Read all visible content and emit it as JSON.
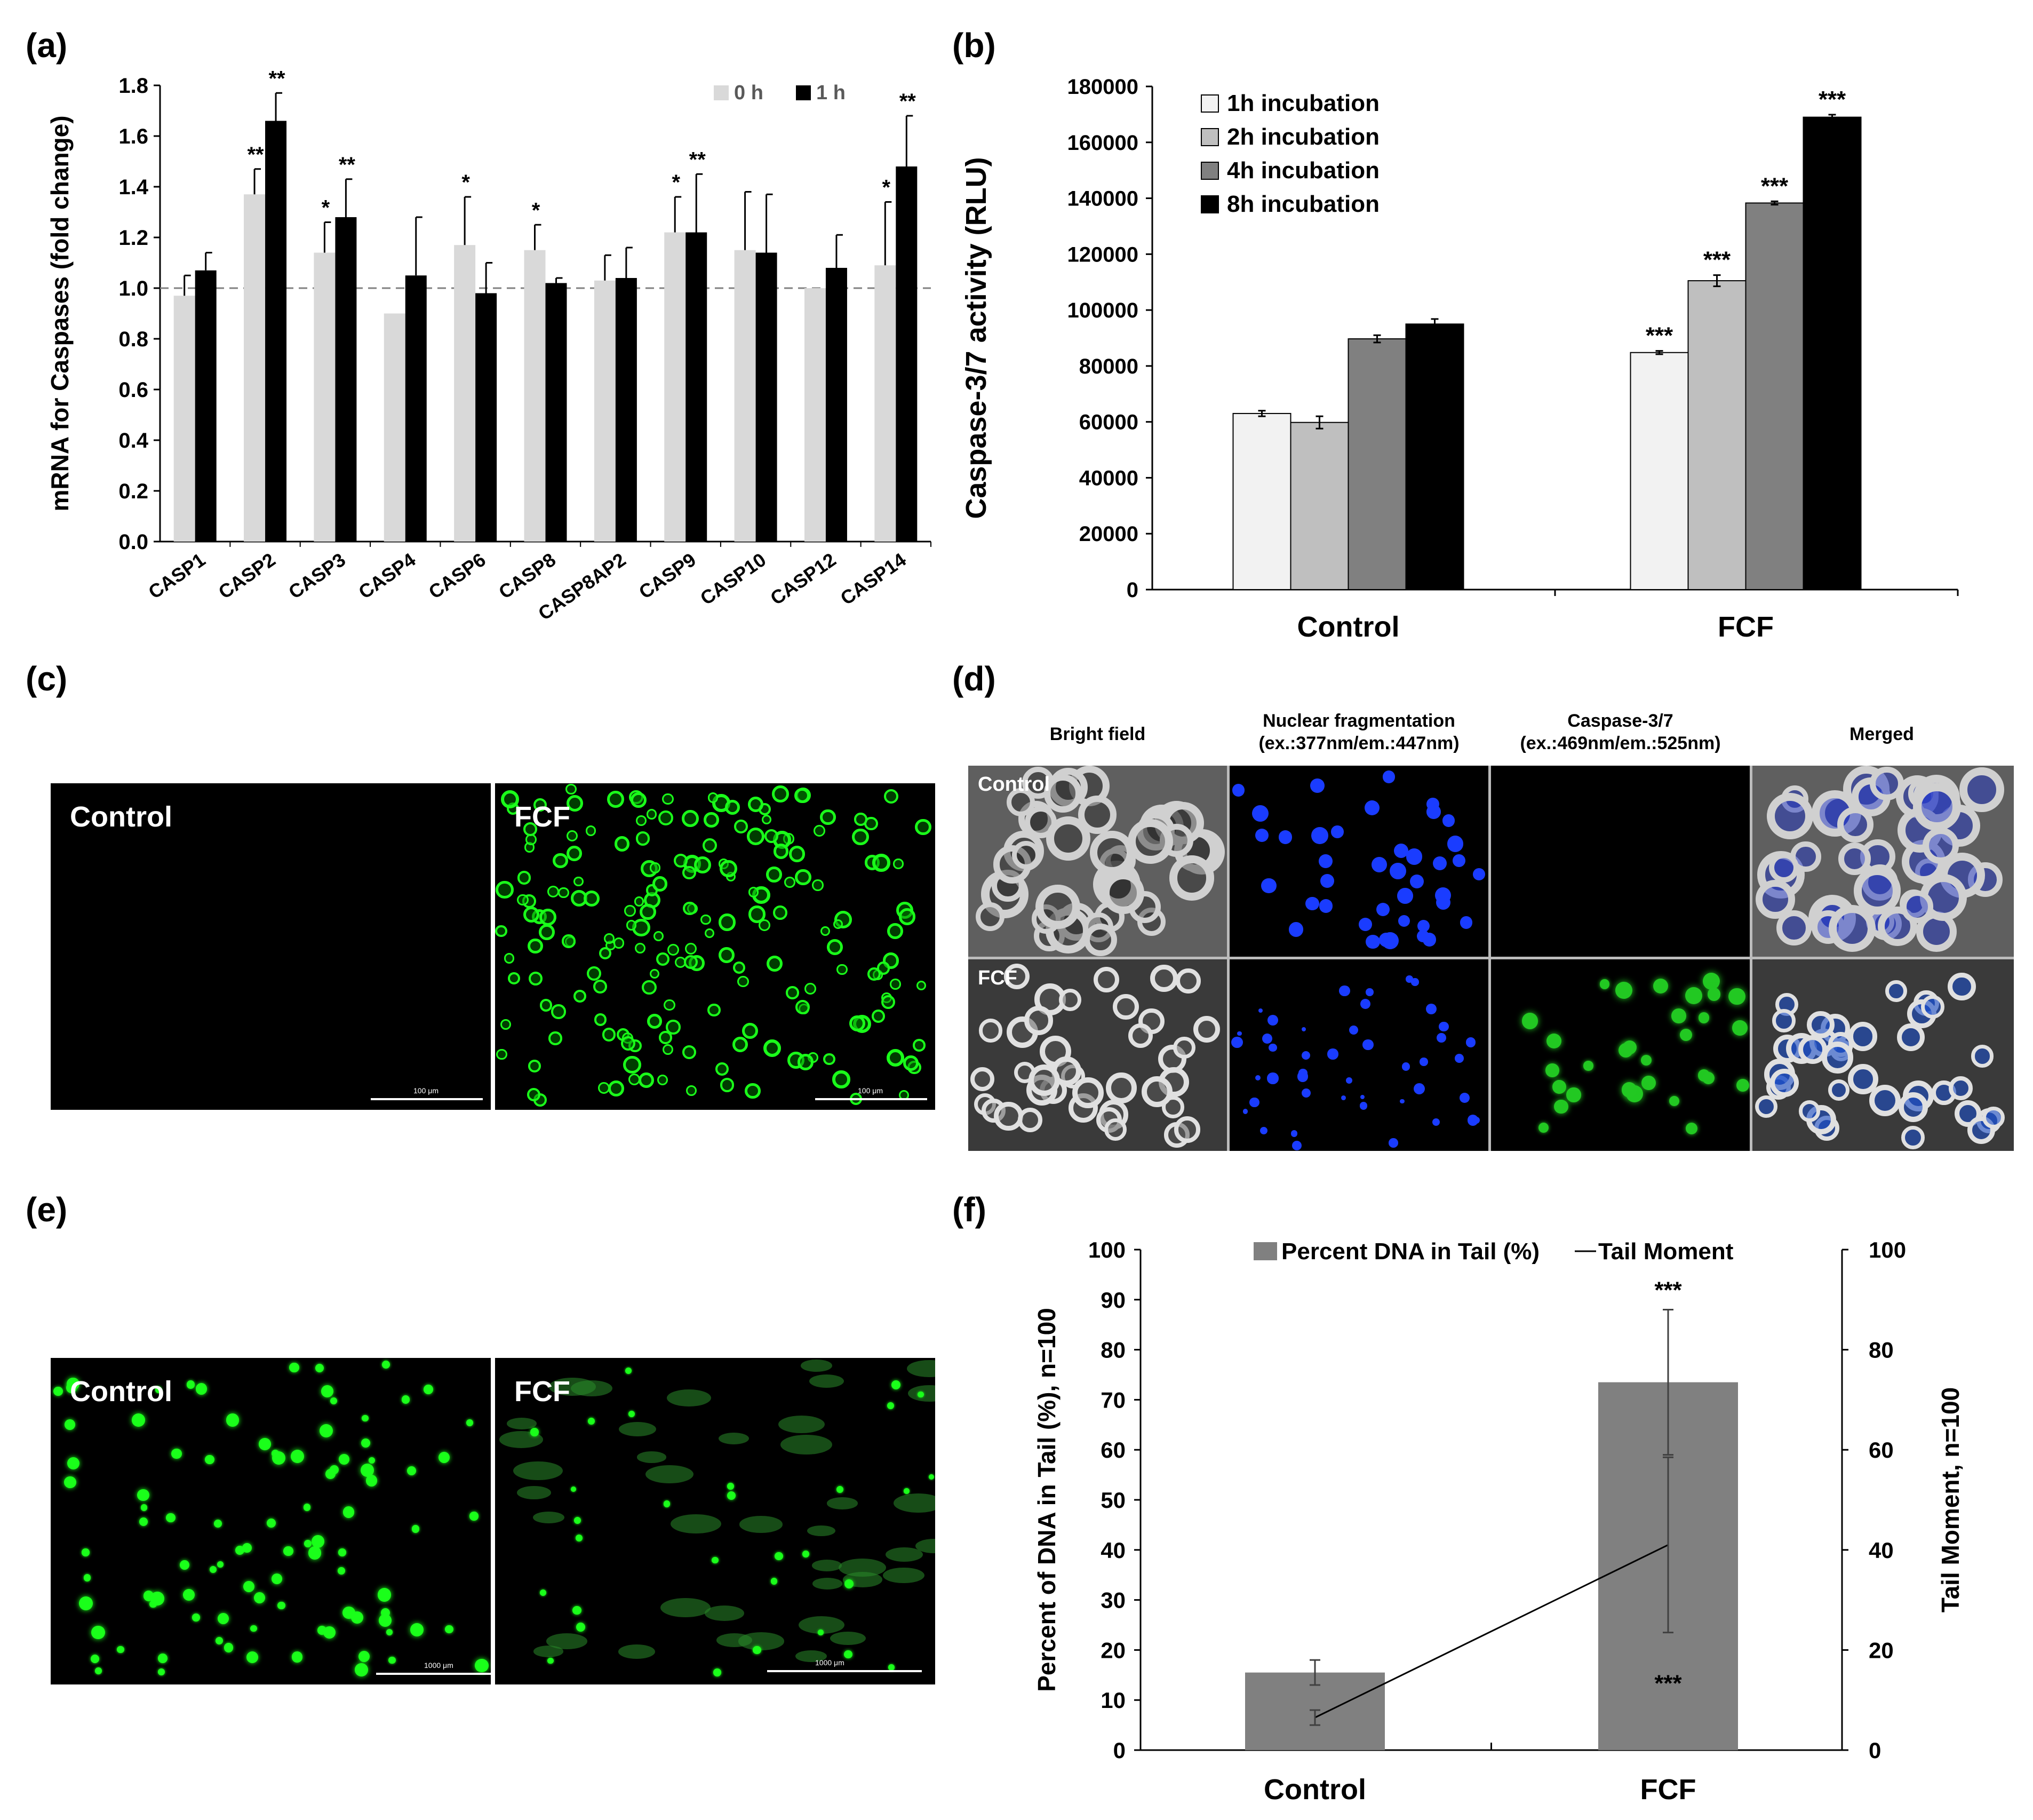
{
  "panels": {
    "a": "(a)",
    "b": "(b)",
    "c": "(c)",
    "d": "(d)",
    "e": "(e)",
    "f": "(f)"
  },
  "colors": {
    "light_gray": "#d9d9d9",
    "black": "#000000",
    "bar_1h": "#f2f2f2",
    "bar_2h": "#bfbfbf",
    "bar_4h": "#808080",
    "bar_8h": "#000000",
    "bar_f": "#808080",
    "fluor_green": "#1aff1a",
    "fluor_blue": "#1a3cff"
  },
  "chart_data": [
    {
      "id": "a",
      "type": "bar",
      "ylabel": "mRNA for Caspases  (fold change)",
      "ylim": [
        0,
        1.8
      ],
      "yticks": [
        "0.0",
        "0.2",
        "0.4",
        "0.6",
        "0.8",
        "1.0",
        "1.2",
        "1.4",
        "1.6",
        "1.8"
      ],
      "reference_line": 1.0,
      "legend_position": "top-right",
      "categories": [
        "CASP1",
        "CASP2",
        "CASP3",
        "CASP4",
        "CASP6",
        "CASP8",
        "CASP8AP2",
        "CASP9",
        "CASP10",
        "CASP12",
        "CASP14"
      ],
      "series": [
        {
          "name": "0 h",
          "values": [
            0.97,
            1.37,
            1.14,
            0.9,
            1.17,
            1.15,
            1.03,
            1.22,
            1.15,
            1.0,
            1.09
          ],
          "errors": [
            0.08,
            0.1,
            0.12,
            0.0,
            0.19,
            0.1,
            0.1,
            0.14,
            0.23,
            0.0,
            0.25
          ],
          "significance": [
            "",
            "**",
            "*",
            "",
            "*",
            "*",
            "",
            "*",
            "",
            "",
            "*"
          ]
        },
        {
          "name": "1 h",
          "values": [
            1.07,
            1.66,
            1.28,
            1.05,
            0.98,
            1.02,
            1.04,
            1.22,
            1.14,
            1.08,
            1.48
          ],
          "errors": [
            0.07,
            0.11,
            0.15,
            0.23,
            0.12,
            0.02,
            0.12,
            0.23,
            0.23,
            0.13,
            0.2
          ],
          "significance": [
            "",
            "**",
            "**",
            "",
            "",
            "",
            "",
            "**",
            "",
            "",
            "**"
          ]
        }
      ]
    },
    {
      "id": "b",
      "type": "bar",
      "ylabel": "Caspase-3/7 activity (RLU)",
      "ylim": [
        0,
        180000
      ],
      "yticks": [
        "0",
        "20000",
        "40000",
        "60000",
        "80000",
        "100000",
        "120000",
        "140000",
        "160000",
        "180000"
      ],
      "legend_position": "top-left",
      "categories": [
        "Control",
        "FCF"
      ],
      "series": [
        {
          "name": "1h incubation",
          "values": [
            63000,
            84800
          ],
          "errors": [
            1000,
            600
          ],
          "significance": [
            "",
            "***"
          ]
        },
        {
          "name": "2h incubation",
          "values": [
            59800,
            110500
          ],
          "errors": [
            2200,
            2000
          ],
          "significance": [
            "",
            "***"
          ]
        },
        {
          "name": "4h incubation",
          "values": [
            89700,
            138300
          ],
          "errors": [
            1300,
            600
          ],
          "significance": [
            "",
            "***"
          ]
        },
        {
          "name": "8h incubation",
          "values": [
            95000,
            169000
          ],
          "errors": [
            1800,
            900
          ],
          "significance": [
            "",
            "***"
          ]
        }
      ]
    },
    {
      "id": "f",
      "type": "bar",
      "ylabel": "Percent of DNA in Tail (%), n=100",
      "y2label": "Tail Moment, n=100",
      "ylim": [
        0,
        100
      ],
      "y2lim": [
        0,
        100
      ],
      "yticks": [
        "0",
        "10",
        "20",
        "30",
        "40",
        "50",
        "60",
        "70",
        "80",
        "90",
        "100"
      ],
      "y2ticks": [
        "0",
        "20",
        "40",
        "60",
        "80",
        "100"
      ],
      "legend_position": "top",
      "categories": [
        "Control",
        "FCF"
      ],
      "series": [
        {
          "name": "Percent DNA in Tail (%)",
          "kind": "bar",
          "values": [
            15.5,
            73.5
          ],
          "errors": [
            2.5,
            14.5
          ],
          "significance": [
            "",
            "***"
          ]
        },
        {
          "name": "Tail Moment",
          "kind": "line",
          "axis": "right",
          "values": [
            6.5,
            41
          ],
          "errors": [
            1.5,
            17.5
          ],
          "significance": [
            "",
            "***"
          ]
        }
      ]
    }
  ],
  "micrographs": {
    "c": {
      "left_label": "Control",
      "right_label": "FCF",
      "scale_text": "100 μm"
    },
    "d": {
      "columns": [
        "Bright field",
        "Nuclear fragmentation\n(ex.:377nm/em.:447nm)",
        "Caspase-3/7\n(ex.:469nm/em.:525nm)",
        "Merged"
      ],
      "rows": [
        "Control",
        "FCF"
      ]
    },
    "e": {
      "left_label": "Control",
      "right_label": "FCF",
      "scale_text": "1000 μm"
    }
  }
}
